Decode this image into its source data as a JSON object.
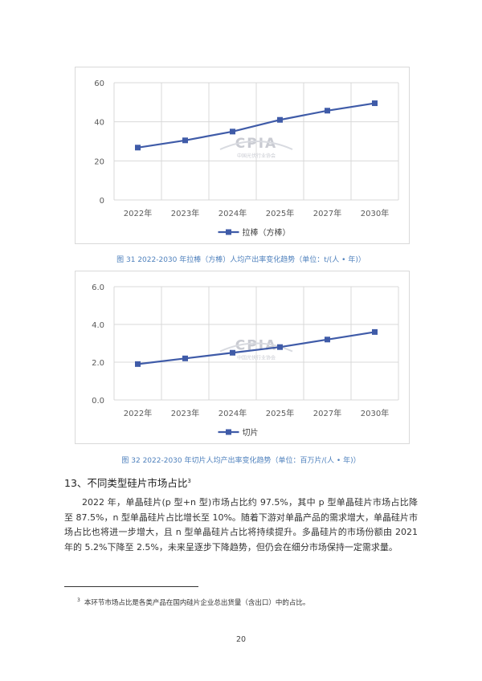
{
  "chart_data": [
    {
      "type": "line",
      "categories": [
        "2022年",
        "2023年",
        "2024年",
        "2025年",
        "2027年",
        "2030年"
      ],
      "series": [
        {
          "name": "拉棒（方棒）",
          "values": [
            26.8,
            30.5,
            35.0,
            41.0,
            45.7,
            49.5
          ],
          "color": "#3f5ba8"
        }
      ],
      "ylim": [
        0,
        60
      ],
      "yticks": [
        "0",
        "20",
        "40",
        "60"
      ],
      "ytick_values": [
        0,
        20,
        40,
        60
      ],
      "grid": true,
      "legend_position": "bottom",
      "watermark": "CPIA 中国光伏行业协会"
    },
    {
      "type": "line",
      "categories": [
        "2022年",
        "2023年",
        "2024年",
        "2025年",
        "2027年",
        "2030年"
      ],
      "series": [
        {
          "name": "切片",
          "values": [
            1.9,
            2.2,
            2.5,
            2.8,
            3.2,
            3.6
          ],
          "color": "#3f5ba8"
        }
      ],
      "ylim": [
        0,
        6
      ],
      "yticks": [
        "0.0",
        "2.0",
        "4.0",
        "6.0"
      ],
      "ytick_values": [
        0,
        2,
        4,
        6
      ],
      "grid": true,
      "legend_position": "bottom",
      "watermark": "CPIA 中国光伏行业协会"
    }
  ],
  "captions": {
    "figure31": "图 31   2022-2030 年拉棒（方棒）人均产出率变化趋势（单位：t/(人 • 年)）",
    "figure32": "图 32   2022-2030 年切片人均产出率变化趋势（单位：百万片/(人 • 年)）"
  },
  "section": {
    "heading": "13、不同类型硅片市场占比",
    "heading_sup": "3",
    "paragraph": "2022 年，单晶硅片(p 型+n 型)市场占比约 97.5%，其中 p 型单晶硅片市场占比降至 87.5%，n 型单晶硅片占比增长至 10%。随着下游对单晶产品的需求增大，单晶硅片市场占比也将进一步增大，且 n 型单晶硅片占比将持续提升。多晶硅片的市场份额由 2021 年的 5.2%下降至 2.5%，未来呈逐步下降趋势，但仍会在细分市场保持一定需求量。"
  },
  "footnote": {
    "sup": "3",
    "text": "本环节市场占比是各类产品在国内硅片企业总出货量（含出口）中的占比。"
  },
  "page_number": "20"
}
